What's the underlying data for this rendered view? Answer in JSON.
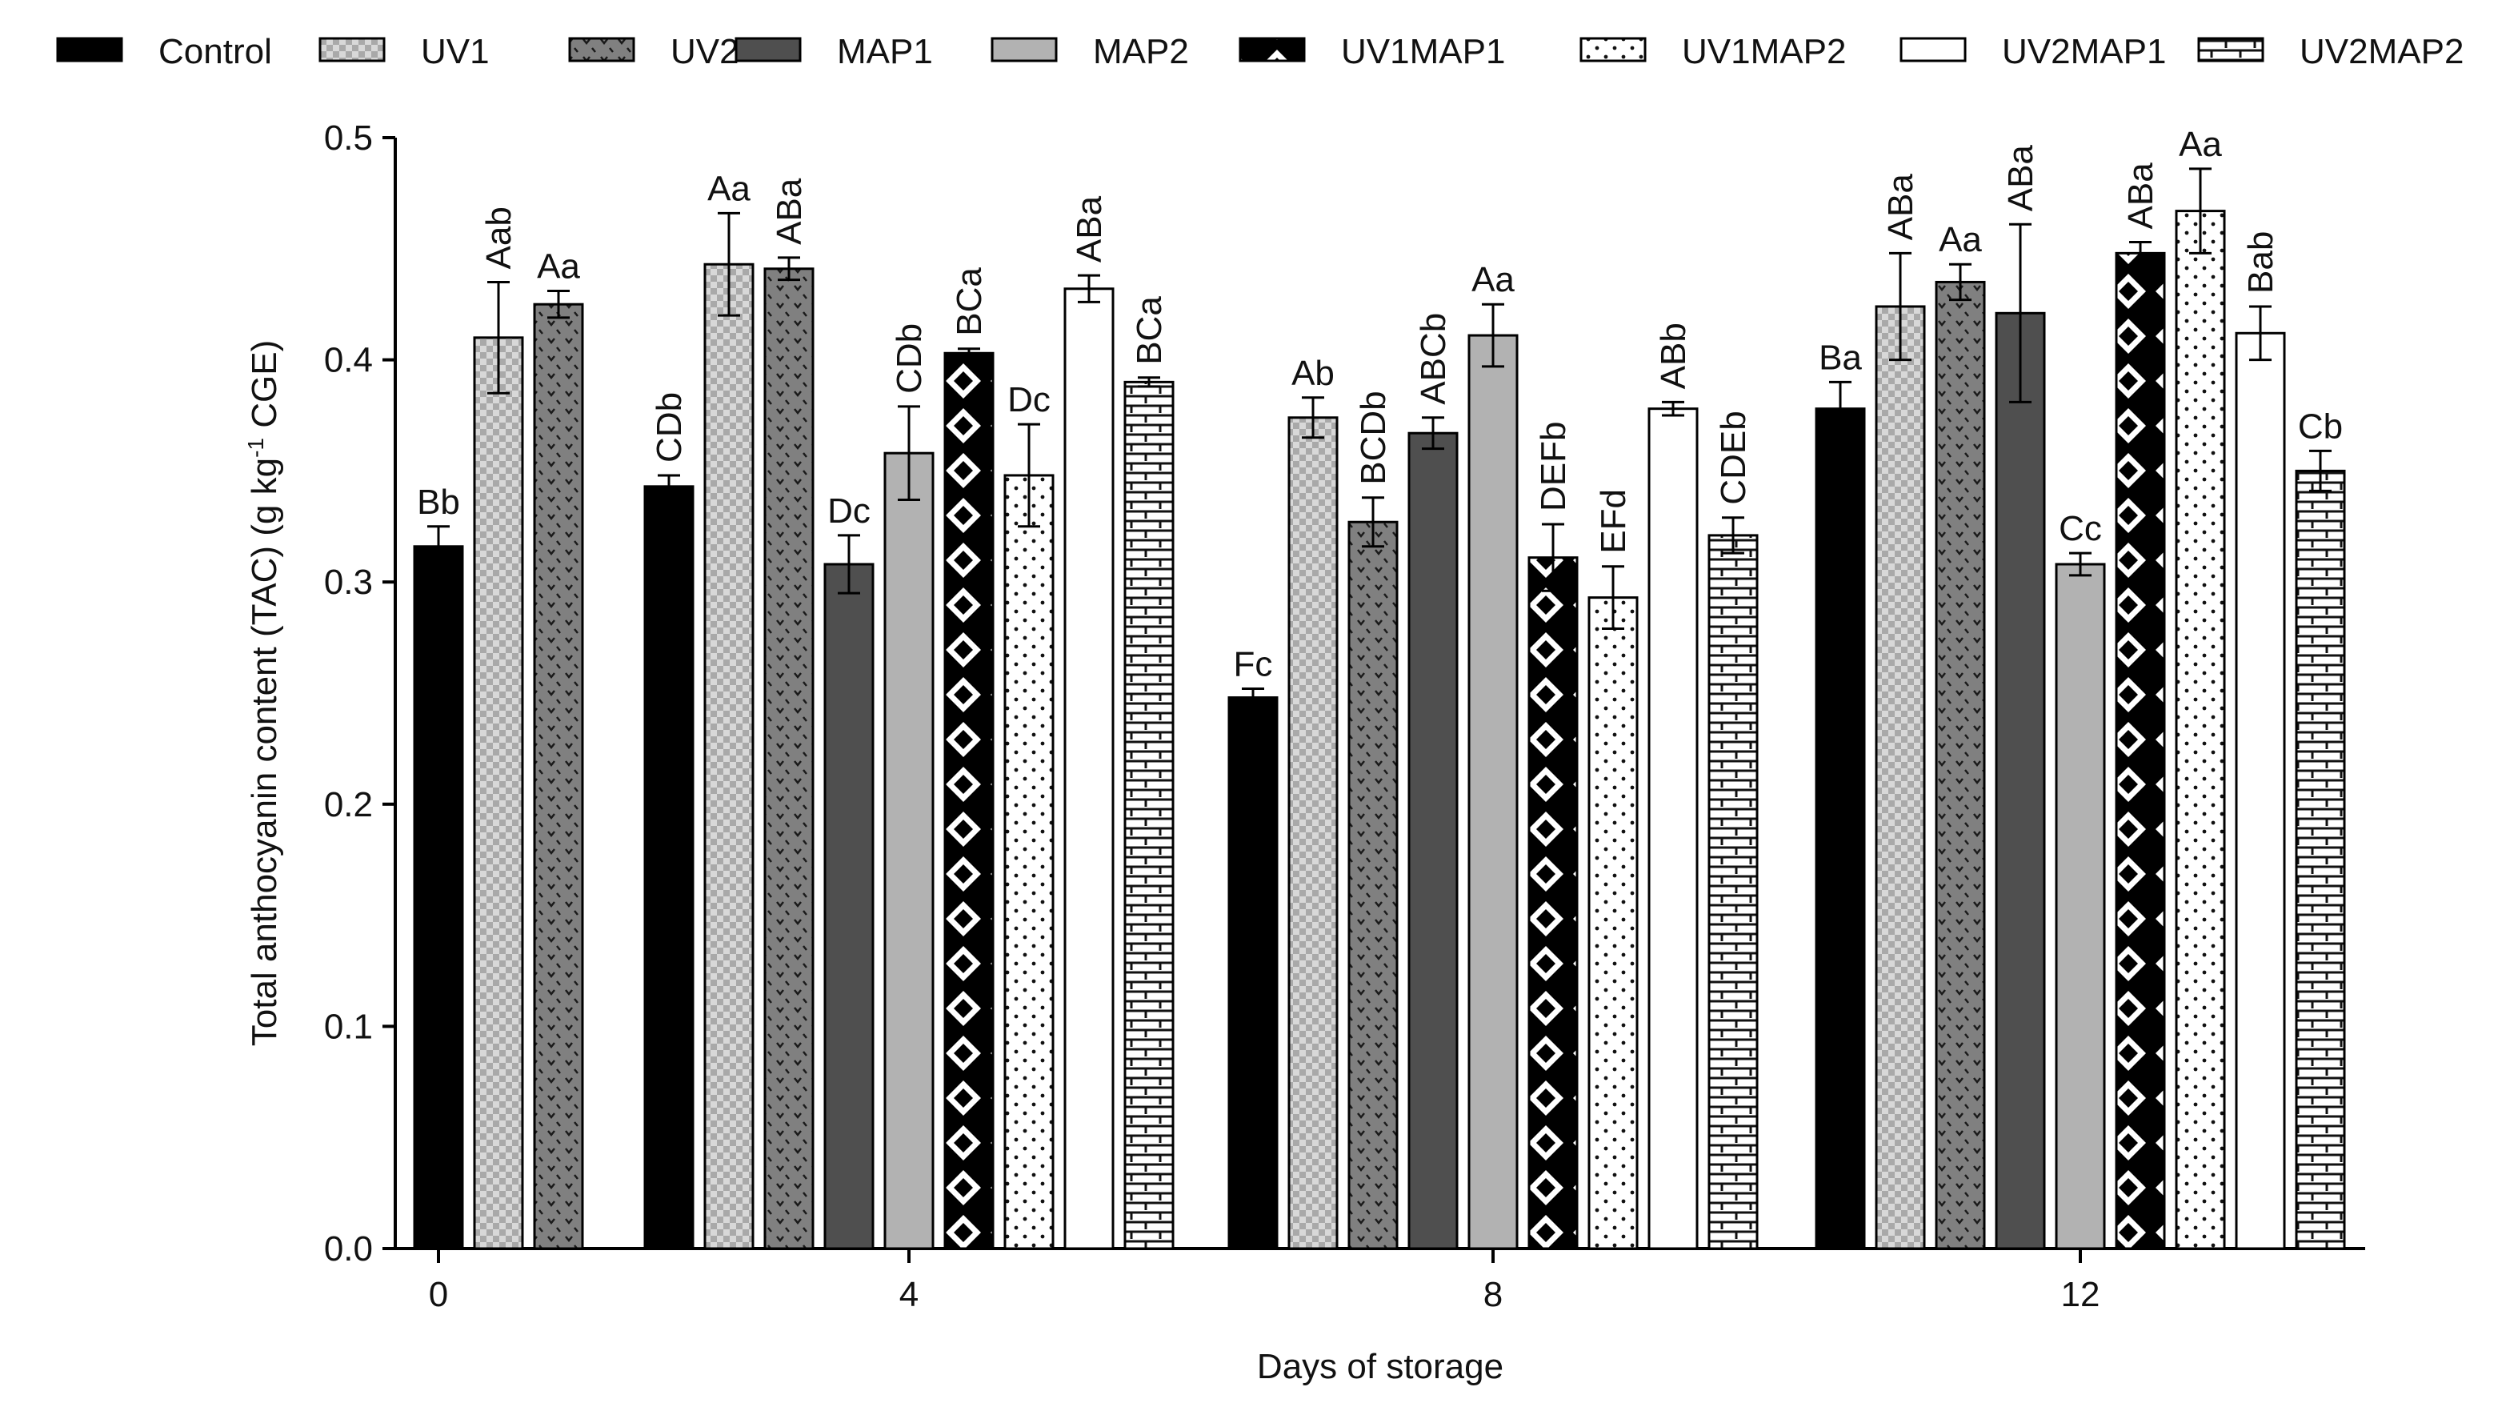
{
  "chart_data": {
    "type": "bar",
    "title": "",
    "xlabel": "Days of storage",
    "ylabel_main": "Total anthocyanin content (TAC) (g kg",
    "ylabel_sup": "-1",
    "ylabel_end": " CGE)",
    "ylim": [
      0.0,
      0.5
    ],
    "yticks": [
      "0.0",
      "0.1",
      "0.2",
      "0.3",
      "0.4",
      "0.5"
    ],
    "legend_position": "top",
    "groups": [
      {
        "label": "0",
        "bars": [
          {
            "series": "Control",
            "value": 0.316,
            "err": 0.009,
            "letter": "Bb"
          },
          {
            "series": "UV1",
            "value": 0.41,
            "err": 0.025,
            "letter": "Aab"
          },
          {
            "series": "UV2",
            "value": 0.425,
            "err": 0.006,
            "letter": "Aa"
          }
        ]
      },
      {
        "label": "4",
        "bars": [
          {
            "series": "Control",
            "value": 0.343,
            "err": 0.005,
            "letter": "CDb"
          },
          {
            "series": "UV1",
            "value": 0.443,
            "err": 0.023,
            "letter": "Aa"
          },
          {
            "series": "UV2",
            "value": 0.441,
            "err": 0.005,
            "letter": "ABa"
          },
          {
            "series": "MAP1",
            "value": 0.308,
            "err": 0.013,
            "letter": "Dc"
          },
          {
            "series": "MAP2",
            "value": 0.358,
            "err": 0.021,
            "letter": "CDb"
          },
          {
            "series": "UV1MAP1",
            "value": 0.403,
            "err": 0.002,
            "letter": "BCa"
          },
          {
            "series": "UV1MAP2",
            "value": 0.348,
            "err": 0.023,
            "letter": "Dc"
          },
          {
            "series": "UV2MAP1",
            "value": 0.432,
            "err": 0.006,
            "letter": "ABa"
          },
          {
            "series": "UV2MAP2",
            "value": 0.39,
            "err": 0.002,
            "letter": "BCa"
          }
        ]
      },
      {
        "label": "8",
        "bars": [
          {
            "series": "Control",
            "value": 0.248,
            "err": 0.004,
            "letter": "Fc"
          },
          {
            "series": "UV1",
            "value": 0.374,
            "err": 0.009,
            "letter": "Ab"
          },
          {
            "series": "UV2",
            "value": 0.327,
            "err": 0.011,
            "letter": "BCDb"
          },
          {
            "series": "MAP1",
            "value": 0.367,
            "err": 0.007,
            "letter": "ABCb"
          },
          {
            "series": "MAP2",
            "value": 0.411,
            "err": 0.014,
            "letter": "Aa"
          },
          {
            "series": "UV1MAP1",
            "value": 0.311,
            "err": 0.015,
            "letter": "DEFb"
          },
          {
            "series": "UV1MAP2",
            "value": 0.293,
            "err": 0.014,
            "letter": "EFd"
          },
          {
            "series": "UV2MAP1",
            "value": 0.378,
            "err": 0.003,
            "letter": "ABb"
          },
          {
            "series": "UV2MAP2",
            "value": 0.321,
            "err": 0.008,
            "letter": "CDEb"
          }
        ]
      },
      {
        "label": "12",
        "bars": [
          {
            "series": "Control",
            "value": 0.378,
            "err": 0.012,
            "letter": "Ba"
          },
          {
            "series": "UV1",
            "value": 0.424,
            "err": 0.024,
            "letter": "ABa"
          },
          {
            "series": "UV2",
            "value": 0.435,
            "err": 0.008,
            "letter": "Aa"
          },
          {
            "series": "MAP1",
            "value": 0.421,
            "err": 0.04,
            "letter": "ABa"
          },
          {
            "series": "MAP2",
            "value": 0.308,
            "err": 0.005,
            "letter": "Cc"
          },
          {
            "series": "UV1MAP1",
            "value": 0.448,
            "err": 0.005,
            "letter": "ABa"
          },
          {
            "series": "UV1MAP2",
            "value": 0.467,
            "err": 0.019,
            "letter": "Aa"
          },
          {
            "series": "UV2MAP1",
            "value": 0.412,
            "err": 0.012,
            "letter": "Bab"
          },
          {
            "series": "UV2MAP2",
            "value": 0.35,
            "err": 0.009,
            "letter": "Cb"
          }
        ]
      }
    ],
    "series": [
      {
        "name": "Control",
        "fill": "#000000",
        "pattern": "solid"
      },
      {
        "name": "UV1",
        "fill": "#b4b4b4",
        "pattern": "checker-light"
      },
      {
        "name": "UV2",
        "fill": "#7f7f7f",
        "pattern": "dots-dark"
      },
      {
        "name": "MAP1",
        "fill": "#4f4f4f",
        "pattern": "solid"
      },
      {
        "name": "MAP2",
        "fill": "#b2b2b2",
        "pattern": "solid"
      },
      {
        "name": "UV1MAP1",
        "fill": "#000000",
        "pattern": "diamond"
      },
      {
        "name": "UV1MAP2",
        "fill": "#ffffff",
        "pattern": "dots-light"
      },
      {
        "name": "UV2MAP1",
        "fill": "#ffffff",
        "pattern": "empty"
      },
      {
        "name": "UV2MAP2",
        "fill": "#ffffff",
        "pattern": "brick"
      }
    ]
  }
}
